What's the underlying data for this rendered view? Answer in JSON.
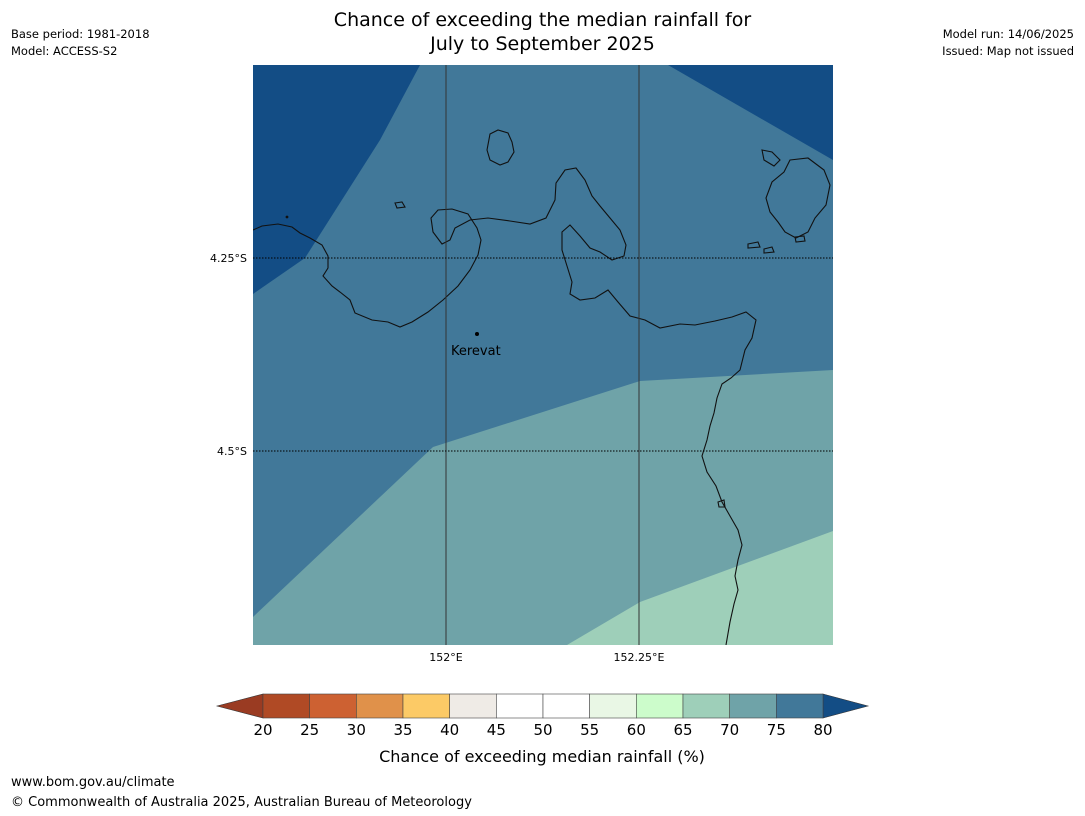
{
  "title_line1": "Chance of exceeding the median rainfall for",
  "title_line2": "July to September 2025",
  "meta_left": {
    "base_period": "Base period: 1981-2018",
    "model": "Model: ACCESS-S2"
  },
  "meta_right": {
    "model_run": "Model run: 14/06/2025",
    "issued": "Issued: Map not issued"
  },
  "map": {
    "lat_labels": [
      "4.25°S",
      "4.5°S"
    ],
    "lon_labels": [
      "152°E",
      "152.25°E"
    ],
    "place": "Kerevat",
    "colors": {
      "band_75_80": "#134d85",
      "band_70_75": "#417899",
      "band_65_70": "#6fa3a8",
      "band_60_65": "#9ecfb9"
    }
  },
  "colorbar": {
    "label": "Chance of exceeding median rainfall (%)",
    "ticks": [
      "20",
      "25",
      "30",
      "35",
      "40",
      "45",
      "50",
      "55",
      "60",
      "65",
      "70",
      "75",
      "80"
    ],
    "colors": [
      "#b04a25",
      "#cd6132",
      "#e0914a",
      "#fcca66",
      "#efebe6",
      "#ffffff",
      "#ffffff",
      "#e9f7e5",
      "#ccfccb",
      "#9ecfb9",
      "#6fa3a8",
      "#417899"
    ],
    "under_color": "#9a3b22",
    "over_color": "#134d85"
  },
  "footer": {
    "url": "www.bom.gov.au/climate",
    "copyright": "© Commonwealth of Australia 2025, Australian Bureau of Meteorology"
  }
}
